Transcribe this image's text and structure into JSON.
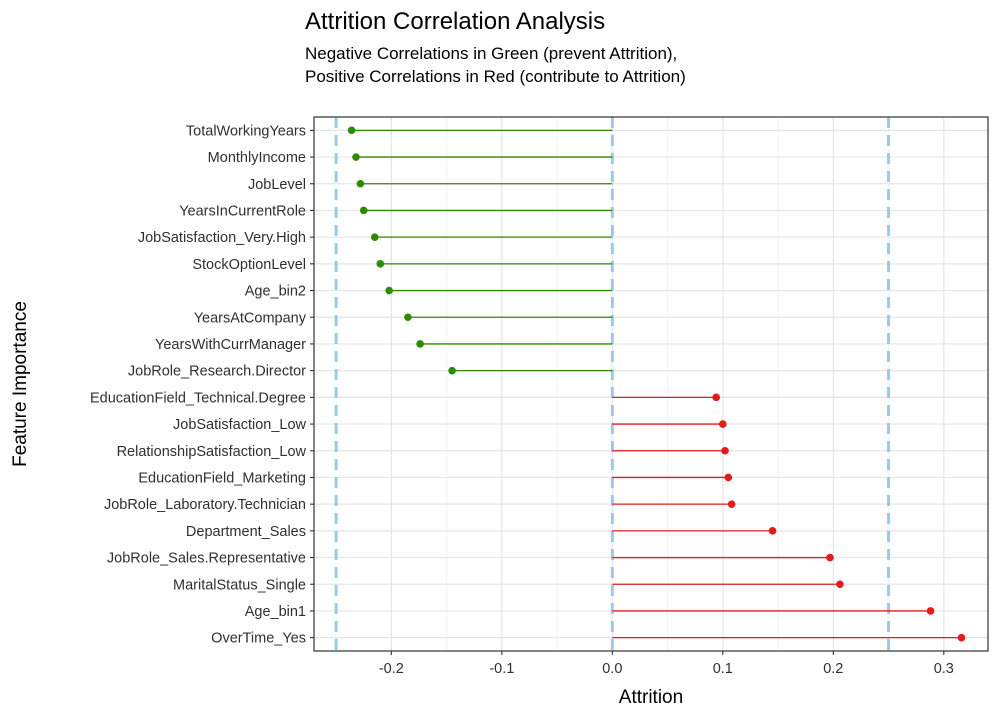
{
  "chart_data": {
    "type": "lollipop",
    "title": "Attrition Correlation Analysis",
    "subtitle": [
      "Negative Correlations in Green (prevent Attrition),",
      "Positive Correlations in Red (contribute to Attrition)"
    ],
    "xlabel": "Attrition",
    "ylabel": "Feature Importance",
    "xlim": [
      -0.27,
      0.34
    ],
    "x_ticks": [
      -0.2,
      -0.1,
      0.0,
      0.1,
      0.2,
      0.3
    ],
    "x_tick_labels": [
      "-0.2",
      "-0.1",
      "0.0",
      "0.1",
      "0.2",
      "0.3"
    ],
    "reference_lines": [
      -0.25,
      0.0,
      0.25
    ],
    "grid": true,
    "colors": {
      "negative": "#2e8b00",
      "positive": "#e41a1c",
      "reference": "#9ecae1",
      "grid_major": "#e5e5e5",
      "grid_minor": "#f2f2f2",
      "border": "#333333"
    },
    "categories": [
      "TotalWorkingYears",
      "MonthlyIncome",
      "JobLevel",
      "YearsInCurrentRole",
      "JobSatisfaction_Very.High",
      "StockOptionLevel",
      "Age_bin2",
      "YearsAtCompany",
      "YearsWithCurrManager",
      "JobRole_Research.Director",
      "EducationField_Technical.Degree",
      "JobSatisfaction_Low",
      "RelationshipSatisfaction_Low",
      "EducationField_Marketing",
      "JobRole_Laboratory.Technician",
      "Department_Sales",
      "JobRole_Sales.Representative",
      "MaritalStatus_Single",
      "Age_bin1",
      "OverTime_Yes"
    ],
    "values": [
      -0.236,
      -0.232,
      -0.228,
      -0.225,
      -0.215,
      -0.21,
      -0.202,
      -0.185,
      -0.174,
      -0.145,
      0.094,
      0.1,
      0.102,
      0.105,
      0.108,
      0.145,
      0.197,
      0.206,
      0.288,
      0.316
    ]
  }
}
